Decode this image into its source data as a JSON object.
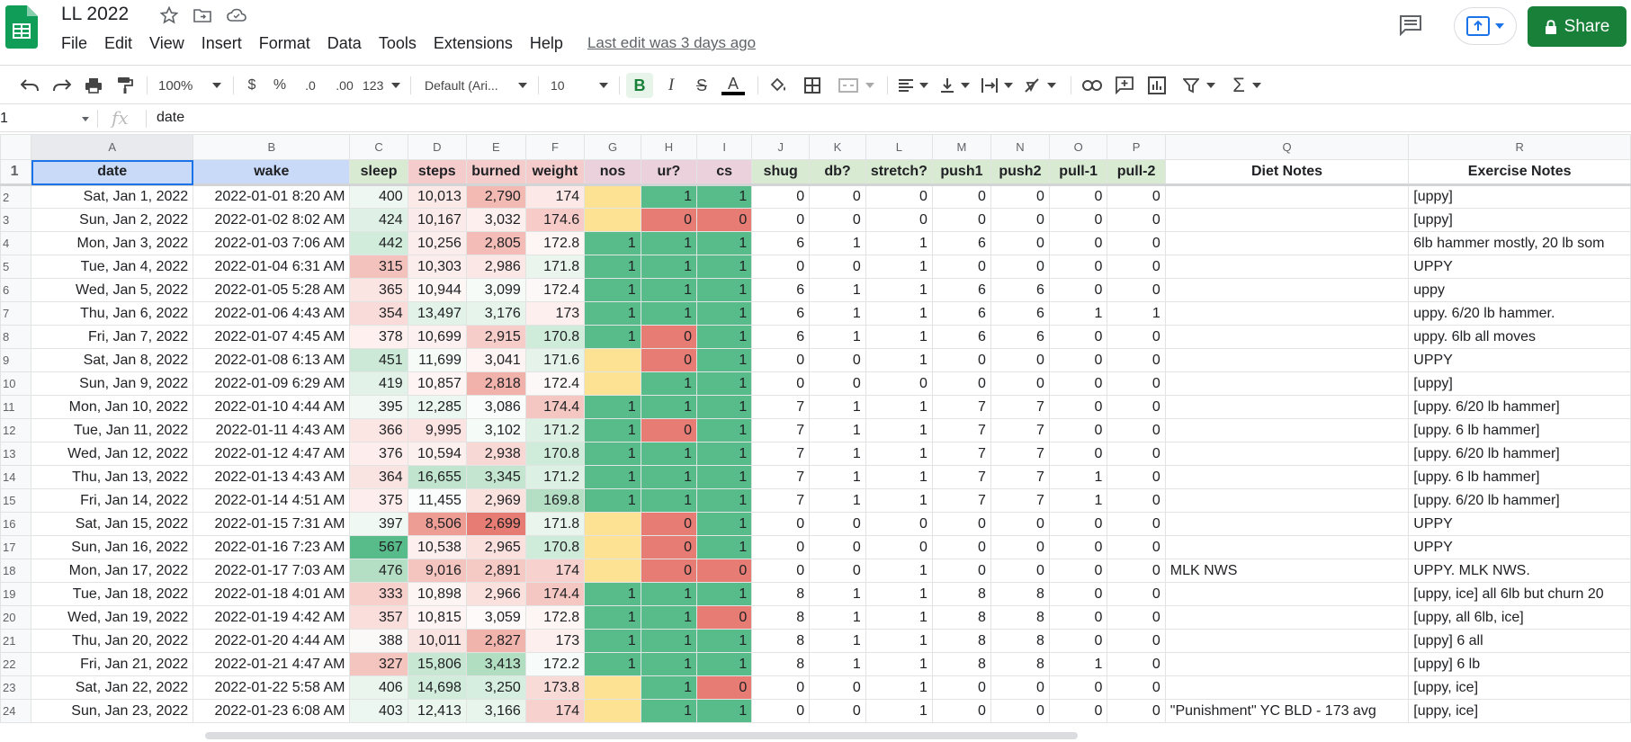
{
  "app": {
    "doc_title": "LL 2022",
    "menu": [
      "File",
      "Edit",
      "View",
      "Insert",
      "Format",
      "Data",
      "Tools",
      "Extensions",
      "Help"
    ],
    "last_edit": "Last edit was 3 days ago",
    "share_label": "Share",
    "colors": {
      "brand": "#0f9d58",
      "share": "#188038",
      "selection": "#1a73e8"
    }
  },
  "toolbar": {
    "zoom": "100%",
    "currency": "$",
    "percent": "%",
    "dec_decrease": ".0",
    "dec_increase": ".00",
    "more_formats": "123",
    "font": "Default (Ari...",
    "font_size": "10",
    "bold": "B",
    "italic": "I",
    "strike": "S",
    "text_color": "A"
  },
  "formula_bar": {
    "name_box": "1",
    "fx": "fx",
    "value": "date"
  },
  "grid": {
    "col_letters": [
      "A",
      "B",
      "C",
      "D",
      "E",
      "F",
      "G",
      "H",
      "I",
      "J",
      "K",
      "L",
      "M",
      "N",
      "O",
      "P",
      "Q",
      "R"
    ],
    "headers": [
      "date",
      "wake",
      "sleep",
      "steps",
      "burned",
      "weight",
      "nos",
      "ur?",
      "cs",
      "shug",
      "db?",
      "stretch?",
      "push1",
      "push2",
      "pull-1",
      "pull-2",
      "Diet Notes",
      "Exercise Notes"
    ],
    "header_colors": [
      "#c9daf8",
      "#c9daf8",
      "#d9ead3",
      "#f4cccc",
      "#f4cccc",
      "#f4cccc",
      "#ead1dc",
      "#ead1dc",
      "#ead1dc",
      "#d9ead3",
      "#d9ead3",
      "#d9ead3",
      "#d9ead3",
      "#d9ead3",
      "#d9ead3",
      "#d9ead3",
      "#ffffff",
      "#ffffff"
    ],
    "rows": [
      {
        "n": "2",
        "date": "Sat, Jan 1, 2022",
        "wake": "2022-01-01 8:20 AM",
        "sleep": "400",
        "steps": "10,013",
        "burned": "2,790",
        "weight": "174",
        "nos": "",
        "ur": "1",
        "cs": "1",
        "shug": "0",
        "db": "0",
        "stretch": "0",
        "push1": "0",
        "push2": "0",
        "pull1": "0",
        "pull2": "0",
        "diet": "",
        "ex": "[uppy]",
        "c": {
          "sleep": "#eef7f1",
          "steps": "#fbe9e7",
          "burned": "#f3b9b3",
          "weight": "#fbe8e7",
          "nos": "#fde293",
          "ur": "#57bb8a",
          "cs": "#57bb8a"
        }
      },
      {
        "n": "3",
        "date": "Sun, Jan 2, 2022",
        "wake": "2022-01-02 8:02 AM",
        "sleep": "424",
        "steps": "10,167",
        "burned": "3,032",
        "weight": "174.6",
        "nos": "",
        "ur": "0",
        "cs": "0",
        "shug": "0",
        "db": "0",
        "stretch": "0",
        "push1": "0",
        "push2": "0",
        "pull1": "0",
        "pull2": "0",
        "diet": "",
        "ex": "[uppy]",
        "c": {
          "sleep": "#dff1e6",
          "steps": "#fbeaea",
          "burned": "#fcefee",
          "weight": "#f6cbc8",
          "nos": "#fde293",
          "ur": "#e67c73",
          "cs": "#e67c73"
        }
      },
      {
        "n": "4",
        "date": "Mon, Jan 3, 2022",
        "wake": "2022-01-03 7:06 AM",
        "sleep": "442",
        "steps": "10,256",
        "burned": "2,805",
        "weight": "172.8",
        "nos": "1",
        "ur": "1",
        "cs": "1",
        "shug": "6",
        "db": "1",
        "stretch": "1",
        "push1": "6",
        "push2": "0",
        "pull1": "0",
        "pull2": "0",
        "diet": "",
        "ex": "6lb hammer mostly, 20 lb som",
        "c": {
          "sleep": "#d2ecdc",
          "steps": "#fbedec",
          "burned": "#f3bcb6",
          "weight": "#fdf6f5",
          "nos": "#57bb8a",
          "ur": "#57bb8a",
          "cs": "#57bb8a"
        }
      },
      {
        "n": "5",
        "date": "Tue, Jan 4, 2022",
        "wake": "2022-01-04 6:31 AM",
        "sleep": "315",
        "steps": "10,303",
        "burned": "2,986",
        "weight": "171.8",
        "nos": "1",
        "ur": "1",
        "cs": "1",
        "shug": "0",
        "db": "0",
        "stretch": "1",
        "push1": "0",
        "push2": "0",
        "pull1": "0",
        "pull2": "0",
        "diet": "",
        "ex": "UPPY",
        "c": {
          "sleep": "#f4c2bd",
          "steps": "#fbedec",
          "burned": "#fbe8e6",
          "weight": "#eaf5ee",
          "nos": "#57bb8a",
          "ur": "#57bb8a",
          "cs": "#57bb8a"
        }
      },
      {
        "n": "6",
        "date": "Wed, Jan 5, 2022",
        "wake": "2022-01-05 5:28 AM",
        "sleep": "365",
        "steps": "10,944",
        "burned": "3,099",
        "weight": "172.4",
        "nos": "1",
        "ur": "1",
        "cs": "1",
        "shug": "6",
        "db": "1",
        "stretch": "1",
        "push1": "6",
        "push2": "6",
        "pull1": "0",
        "pull2": "0",
        "diet": "",
        "ex": "uppy",
        "c": {
          "sleep": "#fbe5e3",
          "steps": "#fdf6f5",
          "burned": "#f6fbf8",
          "weight": "#fdf8f8",
          "nos": "#57bb8a",
          "ur": "#57bb8a",
          "cs": "#57bb8a"
        }
      },
      {
        "n": "7",
        "date": "Thu, Jan 6, 2022",
        "wake": "2022-01-06 4:43 AM",
        "sleep": "354",
        "steps": "13,497",
        "burned": "3,176",
        "weight": "173",
        "nos": "1",
        "ur": "1",
        "cs": "1",
        "shug": "6",
        "db": "1",
        "stretch": "1",
        "push1": "6",
        "push2": "6",
        "pull1": "1",
        "pull2": "1",
        "diet": "",
        "ex": "uppy. 6/20 lb hammer.",
        "c": {
          "sleep": "#f9dcd9",
          "steps": "#e2f2e8",
          "burned": "#e7f4ec",
          "weight": "#fcefee",
          "nos": "#57bb8a",
          "ur": "#57bb8a",
          "cs": "#57bb8a"
        }
      },
      {
        "n": "8",
        "date": "Fri, Jan 7, 2022",
        "wake": "2022-01-07 4:45 AM",
        "sleep": "378",
        "steps": "10,699",
        "burned": "2,915",
        "weight": "170.8",
        "nos": "1",
        "ur": "0",
        "cs": "1",
        "shug": "6",
        "db": "1",
        "stretch": "1",
        "push1": "6",
        "push2": "6",
        "pull1": "0",
        "pull2": "0",
        "diet": "",
        "ex": "uppy. 6lb all moves",
        "c": {
          "sleep": "#fdf0ef",
          "steps": "#fcf1f0",
          "burned": "#f6cdc9",
          "weight": "#cfebd9",
          "nos": "#57bb8a",
          "ur": "#e67c73",
          "cs": "#57bb8a"
        }
      },
      {
        "n": "9",
        "date": "Sat, Jan 8, 2022",
        "wake": "2022-01-08 6:13 AM",
        "sleep": "451",
        "steps": "11,699",
        "burned": "3,041",
        "weight": "171.6",
        "nos": "",
        "ur": "0",
        "cs": "1",
        "shug": "0",
        "db": "0",
        "stretch": "1",
        "push1": "0",
        "push2": "0",
        "pull1": "0",
        "pull2": "0",
        "diet": "",
        "ex": "UPPY",
        "c": {
          "sleep": "#cbe9d6",
          "steps": "#f6fbf8",
          "burned": "#fdf4f3",
          "weight": "#e5f3ea",
          "nos": "#fde293",
          "ur": "#e67c73",
          "cs": "#57bb8a"
        }
      },
      {
        "n": "10",
        "date": "Sun, Jan 9, 2022",
        "wake": "2022-01-09 6:29 AM",
        "sleep": "419",
        "steps": "10,857",
        "burned": "2,818",
        "weight": "172.4",
        "nos": "",
        "ur": "1",
        "cs": "1",
        "shug": "0",
        "db": "0",
        "stretch": "0",
        "push1": "0",
        "push2": "0",
        "pull1": "0",
        "pull2": "0",
        "diet": "",
        "ex": "[uppy]",
        "c": {
          "sleep": "#e2f2e8",
          "steps": "#fdf4f3",
          "burned": "#f1b2ab",
          "weight": "#fdf8f8",
          "nos": "#fde293",
          "ur": "#57bb8a",
          "cs": "#57bb8a"
        }
      },
      {
        "n": "11",
        "date": "Mon, Jan 10, 2022",
        "wake": "2022-01-10 4:44 AM",
        "sleep": "395",
        "steps": "12,285",
        "burned": "3,086",
        "weight": "174.4",
        "nos": "1",
        "ur": "1",
        "cs": "1",
        "shug": "7",
        "db": "1",
        "stretch": "1",
        "push1": "7",
        "push2": "7",
        "pull1": "0",
        "pull2": "0",
        "diet": "",
        "ex": "[uppy. 6/20 lb hammer]",
        "c": {
          "sleep": "#f2f9f4",
          "steps": "#edf7f1",
          "burned": "#f9fcfa",
          "weight": "#f4c7c2",
          "nos": "#57bb8a",
          "ur": "#57bb8a",
          "cs": "#57bb8a"
        }
      },
      {
        "n": "12",
        "date": "Tue, Jan 11, 2022",
        "wake": "2022-01-11 4:43 AM",
        "sleep": "366",
        "steps": "9,995",
        "burned": "3,102",
        "weight": "171.2",
        "nos": "1",
        "ur": "0",
        "cs": "1",
        "shug": "7",
        "db": "1",
        "stretch": "1",
        "push1": "7",
        "push2": "7",
        "pull1": "0",
        "pull2": "0",
        "diet": "",
        "ex": "[uppy. 6 lb hammer]",
        "c": {
          "sleep": "#fbe6e4",
          "steps": "#fae3e1",
          "burned": "#f5fbf7",
          "weight": "#dcf0e3",
          "nos": "#57bb8a",
          "ur": "#e67c73",
          "cs": "#57bb8a"
        }
      },
      {
        "n": "13",
        "date": "Wed, Jan 12, 2022",
        "wake": "2022-01-12 4:47 AM",
        "sleep": "376",
        "steps": "10,594",
        "burned": "2,938",
        "weight": "170.8",
        "nos": "1",
        "ur": "1",
        "cs": "1",
        "shug": "7",
        "db": "1",
        "stretch": "1",
        "push1": "7",
        "push2": "7",
        "pull1": "0",
        "pull2": "0",
        "diet": "",
        "ex": "[uppy. 6/20 lb hammer]",
        "c": {
          "sleep": "#fdeeed",
          "steps": "#fcf0ef",
          "burned": "#f8d8d4",
          "weight": "#cfebd9",
          "nos": "#57bb8a",
          "ur": "#57bb8a",
          "cs": "#57bb8a"
        }
      },
      {
        "n": "14",
        "date": "Thu, Jan 13, 2022",
        "wake": "2022-01-13 4:43 AM",
        "sleep": "364",
        "steps": "16,655",
        "burned": "3,345",
        "weight": "171.2",
        "nos": "1",
        "ur": "1",
        "cs": "1",
        "shug": "7",
        "db": "1",
        "stretch": "1",
        "push1": "7",
        "push2": "7",
        "pull1": "1",
        "pull2": "0",
        "diet": "",
        "ex": "[uppy. 6 lb hammer]",
        "c": {
          "sleep": "#fae4e2",
          "steps": "#c0e4cd",
          "burned": "#c4e6d0",
          "weight": "#dcf0e3",
          "nos": "#57bb8a",
          "ur": "#57bb8a",
          "cs": "#57bb8a"
        }
      },
      {
        "n": "15",
        "date": "Fri, Jan 14, 2022",
        "wake": "2022-01-14 4:51 AM",
        "sleep": "375",
        "steps": "11,455",
        "burned": "2,969",
        "weight": "169.8",
        "nos": "1",
        "ur": "1",
        "cs": "1",
        "shug": "7",
        "db": "1",
        "stretch": "1",
        "push1": "7",
        "push2": "7",
        "pull1": "1",
        "pull2": "0",
        "diet": "",
        "ex": "[uppy. 6/20 lb hammer]",
        "c": {
          "sleep": "#fdeeed",
          "steps": "#fafdfb",
          "burned": "#fae2df",
          "weight": "#b5dfc4",
          "nos": "#57bb8a",
          "ur": "#57bb8a",
          "cs": "#57bb8a"
        }
      },
      {
        "n": "16",
        "date": "Sat, Jan 15, 2022",
        "wake": "2022-01-15 7:31 AM",
        "sleep": "397",
        "steps": "8,506",
        "burned": "2,699",
        "weight": "171.8",
        "nos": "",
        "ur": "0",
        "cs": "1",
        "shug": "0",
        "db": "0",
        "stretch": "0",
        "push1": "0",
        "push2": "0",
        "pull1": "0",
        "pull2": "0",
        "diet": "",
        "ex": "UPPY",
        "c": {
          "sleep": "#f0f8f3",
          "steps": "#ee9d95",
          "burned": "#e67c73",
          "weight": "#eaf5ee",
          "nos": "#fde293",
          "ur": "#e67c73",
          "cs": "#57bb8a"
        }
      },
      {
        "n": "17",
        "date": "Sun, Jan 16, 2022",
        "wake": "2022-01-16 7:23 AM",
        "sleep": "567",
        "steps": "10,538",
        "burned": "2,965",
        "weight": "170.8",
        "nos": "",
        "ur": "0",
        "cs": "1",
        "shug": "0",
        "db": "0",
        "stretch": "0",
        "push1": "0",
        "push2": "0",
        "pull1": "0",
        "pull2": "0",
        "diet": "",
        "ex": "UPPY",
        "c": {
          "sleep": "#57bb8a",
          "steps": "#fcefee",
          "burned": "#fae1de",
          "weight": "#cfebd9",
          "nos": "#fde293",
          "ur": "#e67c73",
          "cs": "#57bb8a"
        }
      },
      {
        "n": "18",
        "date": "Mon, Jan 17, 2022",
        "wake": "2022-01-17 7:03 AM",
        "sleep": "476",
        "steps": "9,016",
        "burned": "2,891",
        "weight": "174",
        "nos": "",
        "ur": "0",
        "cs": "0",
        "shug": "0",
        "db": "0",
        "stretch": "1",
        "push1": "0",
        "push2": "0",
        "pull1": "0",
        "pull2": "0",
        "diet": "MLK NWS",
        "ex": "UPPY. MLK NWS.",
        "c": {
          "sleep": "#b5dfc4",
          "steps": "#f4c4bf",
          "burned": "#f5c9c4",
          "weight": "#f6d1cd",
          "nos": "#fde293",
          "ur": "#e67c73",
          "cs": "#e67c73"
        }
      },
      {
        "n": "19",
        "date": "Tue, Jan 18, 2022",
        "wake": "2022-01-18 4:01 AM",
        "sleep": "333",
        "steps": "10,898",
        "burned": "2,966",
        "weight": "174.4",
        "nos": "1",
        "ur": "1",
        "cs": "1",
        "shug": "8",
        "db": "1",
        "stretch": "1",
        "push1": "8",
        "push2": "8",
        "pull1": "0",
        "pull2": "0",
        "diet": "",
        "ex": "[uppy, ice] all 6lb but churn 20",
        "c": {
          "sleep": "#f7d0cc",
          "steps": "#fdf5f4",
          "burned": "#fae1de",
          "weight": "#f4c7c2",
          "nos": "#57bb8a",
          "ur": "#57bb8a",
          "cs": "#57bb8a"
        }
      },
      {
        "n": "20",
        "date": "Wed, Jan 19, 2022",
        "wake": "2022-01-19 4:42 AM",
        "sleep": "357",
        "steps": "10,815",
        "burned": "3,059",
        "weight": "172.8",
        "nos": "1",
        "ur": "1",
        "cs": "0",
        "shug": "8",
        "db": "1",
        "stretch": "1",
        "push1": "8",
        "push2": "8",
        "pull1": "0",
        "pull2": "0",
        "diet": "",
        "ex": "[uppy, all 6lb, ice]",
        "c": {
          "sleep": "#f9dedb",
          "steps": "#fdf4f3",
          "burned": "#fefafa",
          "weight": "#fdf6f5",
          "nos": "#57bb8a",
          "ur": "#57bb8a",
          "cs": "#e67c73"
        }
      },
      {
        "n": "21",
        "date": "Thu, Jan 20, 2022",
        "wake": "2022-01-20 4:44 AM",
        "sleep": "388",
        "steps": "10,011",
        "burned": "2,827",
        "weight": "173",
        "nos": "1",
        "ur": "1",
        "cs": "1",
        "shug": "8",
        "db": "1",
        "stretch": "1",
        "push1": "8",
        "push2": "8",
        "pull1": "0",
        "pull2": "0",
        "diet": "",
        "ex": "[uppy] 6 all",
        "c": {
          "sleep": "#fbf8f8",
          "steps": "#fae4e2",
          "burned": "#f1b4ad",
          "weight": "#fcefee",
          "nos": "#57bb8a",
          "ur": "#57bb8a",
          "cs": "#57bb8a"
        }
      },
      {
        "n": "22",
        "date": "Fri, Jan 21, 2022",
        "wake": "2022-01-21 4:47 AM",
        "sleep": "327",
        "steps": "15,806",
        "burned": "3,413",
        "weight": "172.2",
        "nos": "1",
        "ur": "1",
        "cs": "1",
        "shug": "8",
        "db": "1",
        "stretch": "1",
        "push1": "8",
        "push2": "8",
        "pull1": "1",
        "pull2": "0",
        "diet": "",
        "ex": "[uppy] 6 lb",
        "c": {
          "sleep": "#f4c4bf",
          "steps": "#c7e7d3",
          "burned": "#b1ddc1",
          "weight": "#f7fbf9",
          "nos": "#57bb8a",
          "ur": "#57bb8a",
          "cs": "#57bb8a"
        }
      },
      {
        "n": "23",
        "date": "Sat, Jan 22, 2022",
        "wake": "2022-01-22 5:58 AM",
        "sleep": "406",
        "steps": "14,698",
        "burned": "3,250",
        "weight": "173.8",
        "nos": "",
        "ur": "1",
        "cs": "0",
        "shug": "0",
        "db": "0",
        "stretch": "1",
        "push1": "0",
        "push2": "0",
        "pull1": "0",
        "pull2": "0",
        "diet": "",
        "ex": "[uppy, ice]",
        "c": {
          "sleep": "#eaf5ee",
          "steps": "#d2ecdc",
          "burned": "#d6eedf",
          "weight": "#f8dad7",
          "nos": "#fde293",
          "ur": "#57bb8a",
          "cs": "#e67c73"
        }
      },
      {
        "n": "24",
        "date": "Sun, Jan 23, 2022",
        "wake": "2022-01-23 6:08 AM",
        "sleep": "403",
        "steps": "12,413",
        "burned": "3,166",
        "weight": "174",
        "nos": "",
        "ur": "1",
        "cs": "1",
        "shug": "0",
        "db": "0",
        "stretch": "1",
        "push1": "0",
        "push2": "0",
        "pull1": "0",
        "pull2": "0",
        "diet": "\"Punishment\" YC BLD - 173 avg",
        "ex": "[uppy, ice]",
        "c": {
          "sleep": "#edf7f1",
          "steps": "#ebf6ef",
          "burned": "#e8f5ec",
          "weight": "#f6d1cd",
          "nos": "#fde293",
          "ur": "#57bb8a",
          "cs": "#57bb8a"
        }
      }
    ]
  }
}
